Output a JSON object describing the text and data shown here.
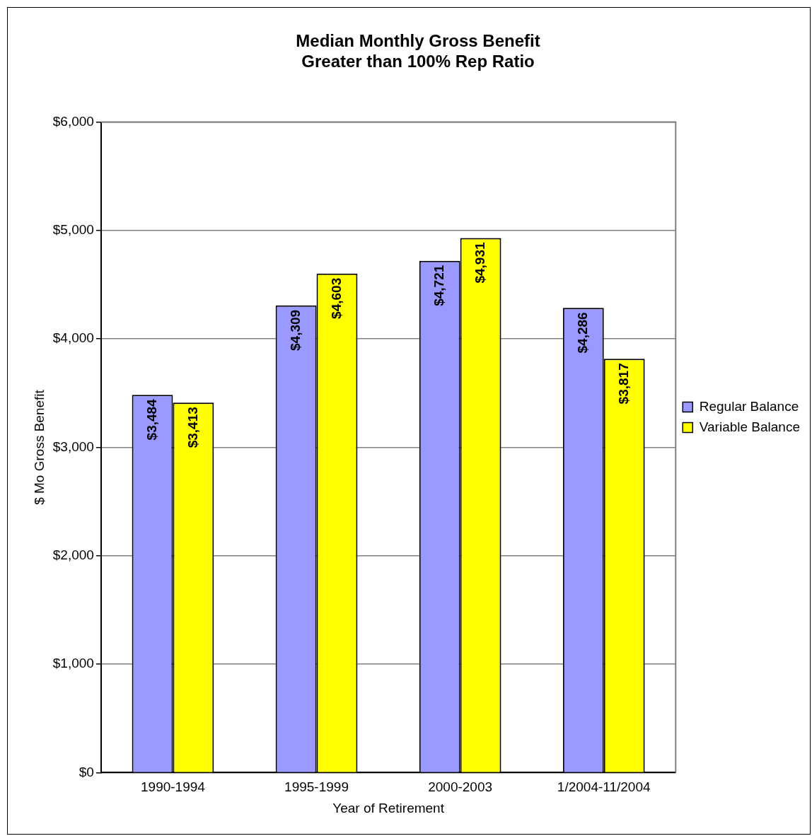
{
  "chart_data": {
    "type": "bar",
    "title": "Median Monthly Gross Benefit\nGreater than 100% Rep Ratio",
    "xlabel": "Year of Retirement",
    "ylabel": "$ Mo Gross Benefit",
    "categories": [
      "1990-1994",
      "1995-1999",
      "2000-2003",
      "1/2004-11/2004"
    ],
    "series": [
      {
        "name": "Regular Balance",
        "color": "#9999ff",
        "values": [
          3484,
          4309,
          4721,
          4286
        ],
        "value_labels": [
          "$3,484",
          "$4,309",
          "$4,721",
          "$4,286"
        ]
      },
      {
        "name": "Variable Balance",
        "color": "#ffff00",
        "values": [
          3413,
          4603,
          4931,
          3817
        ],
        "value_labels": [
          "$3,413",
          "$4,603",
          "$4,931",
          "$3,817"
        ]
      }
    ],
    "ylim": [
      0,
      6000
    ],
    "yticks": [
      {
        "value": 0,
        "label": "$0"
      },
      {
        "value": 1000,
        "label": "$1,000"
      },
      {
        "value": 2000,
        "label": "$2,000"
      },
      {
        "value": 3000,
        "label": "$3,000"
      },
      {
        "value": 4000,
        "label": "$4,000"
      },
      {
        "value": 5000,
        "label": "$5,000"
      },
      {
        "value": 6000,
        "label": "$6,000"
      }
    ],
    "grid": "y",
    "legend": "right"
  }
}
